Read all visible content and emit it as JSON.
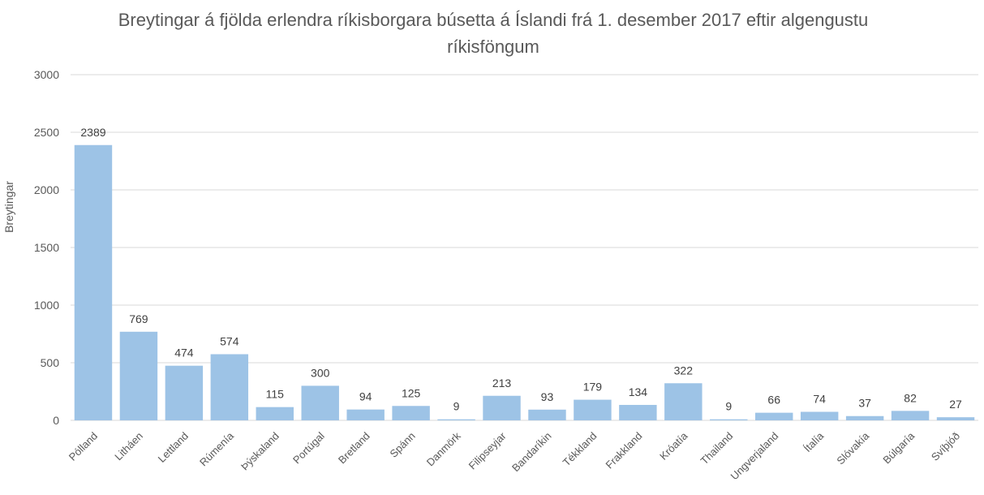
{
  "chart_data": {
    "type": "bar",
    "title": "Breytingar á fjölda erlendra ríkisborgara búsetta á Íslandi frá 1. desember 2017 eftir algengustu ríkisföngum",
    "xlabel": "",
    "ylabel": "Breytingar",
    "ylim": [
      0,
      3000
    ],
    "yticks": [
      0,
      500,
      1000,
      1500,
      2000,
      2500,
      3000
    ],
    "grid": true,
    "legend": "none",
    "bar_color": "#9dc3e6",
    "categories": [
      "Pólland",
      "Litháen",
      "Lettland",
      "Rúmenía",
      "Þýskaland",
      "Portúgal",
      "Bretland",
      "Spánn",
      "Danmörk",
      "Filipseyjar",
      "Bandaríkin",
      "Tékkland",
      "Frakkland",
      "Króatía",
      "Thailand",
      "Ungverjaland",
      "Ítalía",
      "Slóvakía",
      "Búlgaría",
      "Svíþjóð"
    ],
    "values": [
      2389,
      769,
      474,
      574,
      115,
      300,
      94,
      125,
      9,
      213,
      93,
      179,
      134,
      322,
      9,
      66,
      74,
      37,
      82,
      27
    ]
  }
}
